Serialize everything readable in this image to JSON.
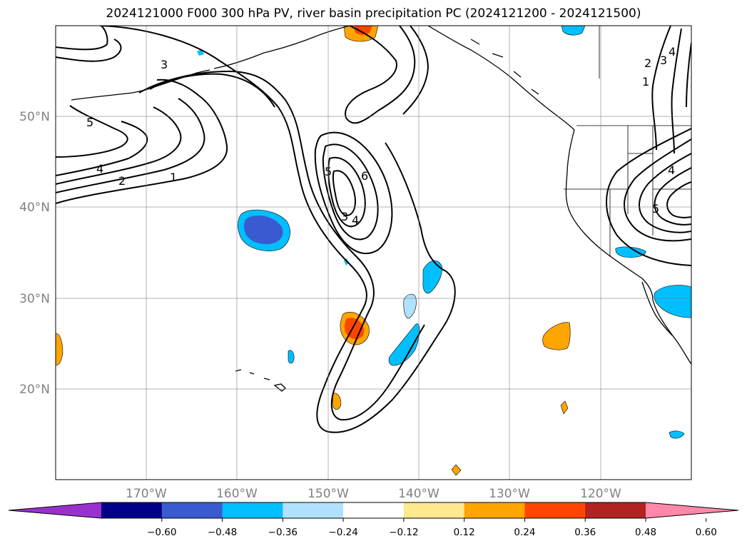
{
  "title": "2024121000 F000 300 hPa PV, river basin precipitation PC (2024121200 - 2024121500)",
  "map": {
    "lon_range": [
      -180,
      -110
    ],
    "lat_range": [
      10,
      60
    ],
    "grid": true,
    "lon_labels": [
      "170°W",
      "160°W",
      "150°W",
      "140°W",
      "130°W",
      "120°W"
    ],
    "lat_labels": [
      "20°N",
      "30°N",
      "40°N",
      "50°N"
    ],
    "contour_field": "300 hPa PV",
    "contour_labels": [
      "5",
      "3",
      "4",
      "2",
      "1",
      "5",
      "6",
      "3",
      "4",
      "2",
      "3",
      "1",
      "4",
      "4",
      "5"
    ]
  },
  "colorbar": {
    "ticks": [
      "−0.60",
      "−0.48",
      "−0.36",
      "−0.24",
      "−0.12",
      "0.12",
      "0.24",
      "0.36",
      "0.48",
      "0.60"
    ],
    "colors": [
      "#9932CC",
      "#00008B",
      "#3A5BD0",
      "#00BFFF",
      "#B0E2FF",
      "#FFFFFF",
      "#FFE98C",
      "#FFA500",
      "#FF4500",
      "#B22222",
      "#FF88AA"
    ],
    "extend": "both"
  }
}
